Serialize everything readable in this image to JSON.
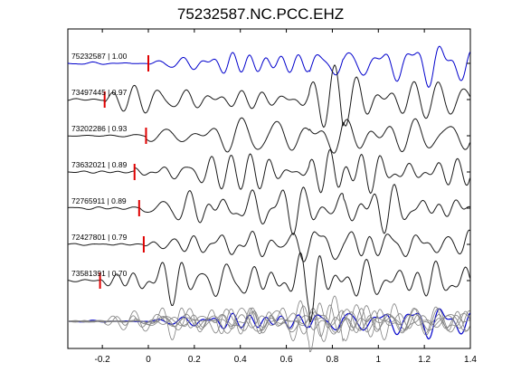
{
  "chart_data": {
    "type": "line",
    "title": "75232587.NC.PCC.EHZ",
    "xlim": [
      -0.35,
      1.4
    ],
    "xticks": [
      -0.2,
      0,
      0.2,
      0.4,
      0.6,
      0.8,
      1,
      1.2,
      1.4
    ],
    "xtick_labels": [
      "-0.2",
      "0",
      "0.2",
      "0.4",
      "0.6",
      "0.8",
      "1",
      "1.2",
      "1.4"
    ],
    "grid": false,
    "colors": {
      "master": "#0000cc",
      "trace": "#1a1a1a",
      "marker": "#e00000",
      "stack": "#808080"
    },
    "series": [
      {
        "name": "75232587 | 1.00",
        "pick": 0.0,
        "color": "#0000cc"
      },
      {
        "name": "73497445 | 0.97",
        "pick": -0.19,
        "color": "#1a1a1a"
      },
      {
        "name": "73202286 | 0.93",
        "pick": -0.01,
        "color": "#1a1a1a"
      },
      {
        "name": "73632021 | 0.89",
        "pick": -0.06,
        "color": "#1a1a1a"
      },
      {
        "name": "72765911 | 0.89",
        "pick": -0.04,
        "color": "#1a1a1a"
      },
      {
        "name": "72427801 | 0.79",
        "pick": -0.02,
        "color": "#1a1a1a"
      },
      {
        "name": "73581391 | 0.70",
        "pick": -0.21,
        "color": "#1a1a1a"
      }
    ]
  }
}
